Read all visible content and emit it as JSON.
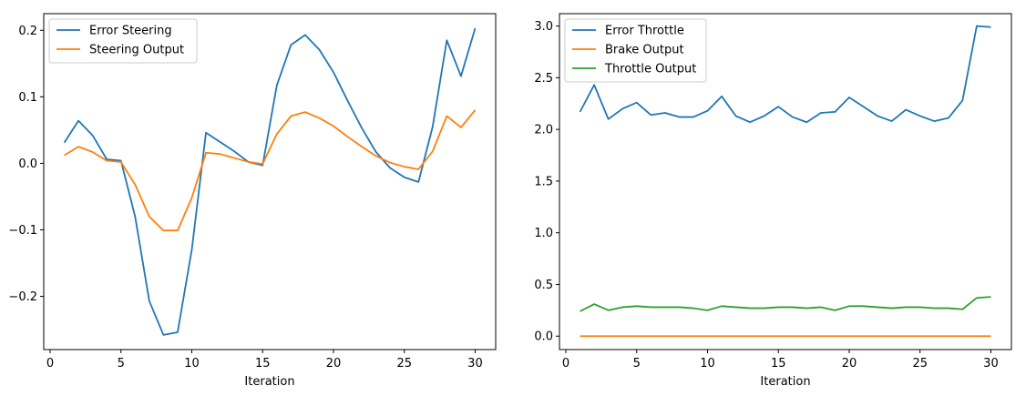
{
  "chart_data": [
    {
      "type": "line",
      "xlabel": "Iteration",
      "ylabel": "",
      "xlim": [
        -0.45,
        31.45
      ],
      "ylim": [
        -0.28,
        0.225
      ],
      "xticks": [
        0,
        5,
        10,
        15,
        20,
        25,
        30
      ],
      "yticks": [
        -0.2,
        -0.1,
        0.0,
        0.1,
        0.2
      ],
      "ytick_labels": [
        "−0.2",
        "−0.1",
        "0.0",
        "0.1",
        "0.2"
      ],
      "legend_position": "upper-left",
      "grid": false,
      "x": [
        1,
        2,
        3,
        4,
        5,
        6,
        7,
        8,
        9,
        10,
        11,
        12,
        13,
        14,
        15,
        16,
        17,
        18,
        19,
        20,
        21,
        22,
        23,
        24,
        25,
        26,
        27,
        28,
        29,
        30
      ],
      "series": [
        {
          "name": "Error Steering",
          "color": "#1f77b4",
          "values": [
            0.031,
            0.064,
            0.042,
            0.006,
            0.004,
            -0.08,
            -0.207,
            -0.258,
            -0.254,
            -0.13,
            0.046,
            0.032,
            0.018,
            0.002,
            -0.003,
            0.117,
            0.178,
            0.193,
            0.171,
            0.137,
            0.094,
            0.053,
            0.017,
            -0.007,
            -0.021,
            -0.028,
            0.055,
            0.185,
            0.131,
            0.203
          ]
        },
        {
          "name": "Steering Output",
          "color": "#ff7f0e",
          "values": [
            0.012,
            0.025,
            0.017,
            0.004,
            0.002,
            -0.032,
            -0.08,
            -0.101,
            -0.101,
            -0.052,
            0.016,
            0.014,
            0.008,
            0.002,
            -0.001,
            0.044,
            0.071,
            0.077,
            0.068,
            0.056,
            0.04,
            0.025,
            0.011,
            0.001,
            -0.005,
            -0.009,
            0.018,
            0.071,
            0.054,
            0.08
          ]
        }
      ]
    },
    {
      "type": "line",
      "xlabel": "Iteration",
      "ylabel": "",
      "xlim": [
        -0.45,
        31.45
      ],
      "ylim": [
        -0.13,
        3.12
      ],
      "xticks": [
        0,
        5,
        10,
        15,
        20,
        25,
        30
      ],
      "yticks": [
        0.0,
        0.5,
        1.0,
        1.5,
        2.0,
        2.5,
        3.0
      ],
      "ytick_labels": [
        "0.0",
        "0.5",
        "1.0",
        "1.5",
        "2.0",
        "2.5",
        "3.0"
      ],
      "legend_position": "upper-left",
      "grid": false,
      "x": [
        1,
        2,
        3,
        4,
        5,
        6,
        7,
        8,
        9,
        10,
        11,
        12,
        13,
        14,
        15,
        16,
        17,
        18,
        19,
        20,
        21,
        22,
        23,
        24,
        25,
        26,
        27,
        28,
        29,
        30
      ],
      "series": [
        {
          "name": "Error Throttle",
          "color": "#1f77b4",
          "values": [
            2.17,
            2.43,
            2.1,
            2.2,
            2.26,
            2.14,
            2.16,
            2.12,
            2.12,
            2.18,
            2.32,
            2.13,
            2.07,
            2.13,
            2.22,
            2.12,
            2.07,
            2.16,
            2.17,
            2.31,
            2.22,
            2.13,
            2.08,
            2.19,
            2.13,
            2.08,
            2.11,
            2.28,
            3.0,
            2.99
          ]
        },
        {
          "name": "Brake Output",
          "color": "#ff7f0e",
          "values": [
            0,
            0,
            0,
            0,
            0,
            0,
            0,
            0,
            0,
            0,
            0,
            0,
            0,
            0,
            0,
            0,
            0,
            0,
            0,
            0,
            0,
            0,
            0,
            0,
            0,
            0,
            0,
            0,
            0,
            0
          ]
        },
        {
          "name": "Throttle Output",
          "color": "#2ca02c",
          "values": [
            0.24,
            0.31,
            0.25,
            0.28,
            0.29,
            0.28,
            0.28,
            0.28,
            0.27,
            0.25,
            0.29,
            0.28,
            0.27,
            0.27,
            0.28,
            0.28,
            0.27,
            0.28,
            0.25,
            0.29,
            0.29,
            0.28,
            0.27,
            0.28,
            0.28,
            0.27,
            0.27,
            0.26,
            0.37,
            0.38
          ]
        }
      ]
    }
  ]
}
